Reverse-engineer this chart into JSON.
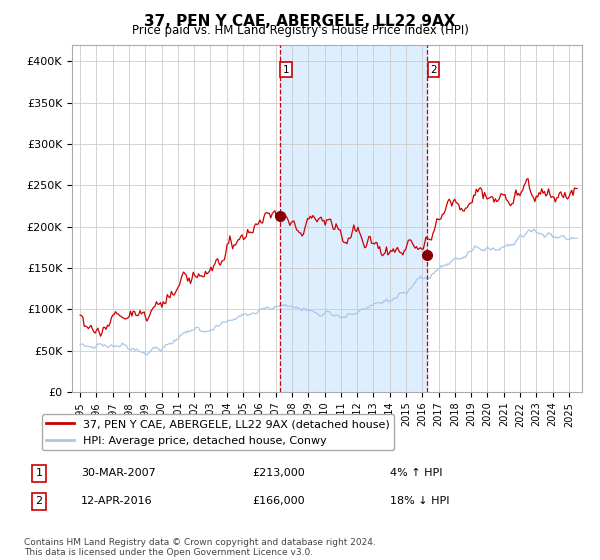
{
  "title": "37, PEN Y CAE, ABERGELE, LL22 9AX",
  "subtitle": "Price paid vs. HM Land Registry's House Price Index (HPI)",
  "legend_line1": "37, PEN Y CAE, ABERGELE, LL22 9AX (detached house)",
  "legend_line2": "HPI: Average price, detached house, Conwy",
  "marker1_date_num": 2007.25,
  "marker1_value": 213000,
  "marker2_date_num": 2016.28,
  "marker2_value": 166000,
  "marker1_table": "30-MAR-2007",
  "marker1_price": "£213,000",
  "marker1_hpi": "4% ↑ HPI",
  "marker2_table": "12-APR-2016",
  "marker2_price": "£166,000",
  "marker2_hpi": "18% ↓ HPI",
  "shade_start": 2007.25,
  "shade_end": 2016.28,
  "hpi_color": "#a8c8e8",
  "price_color": "#cc0000",
  "marker_color": "#880000",
  "shade_color": "#ddeeff",
  "bg_color": "#ffffff",
  "grid_color": "#cccccc",
  "footnote": "Contains HM Land Registry data © Crown copyright and database right 2024.\nThis data is licensed under the Open Government Licence v3.0.",
  "ylim": [
    0,
    420000
  ],
  "yticks": [
    0,
    50000,
    100000,
    150000,
    200000,
    250000,
    300000,
    350000,
    400000
  ],
  "ytick_labels": [
    "£0",
    "£50K",
    "£100K",
    "£150K",
    "£200K",
    "£250K",
    "£300K",
    "£350K",
    "£400K"
  ],
  "xlim_start": 1994.5,
  "xlim_end": 2025.8,
  "xtick_years": [
    1995,
    1996,
    1997,
    1998,
    1999,
    2000,
    2001,
    2002,
    2003,
    2004,
    2005,
    2006,
    2007,
    2008,
    2009,
    2010,
    2011,
    2012,
    2013,
    2014,
    2015,
    2016,
    2017,
    2018,
    2019,
    2020,
    2021,
    2022,
    2023,
    2024,
    2025
  ]
}
